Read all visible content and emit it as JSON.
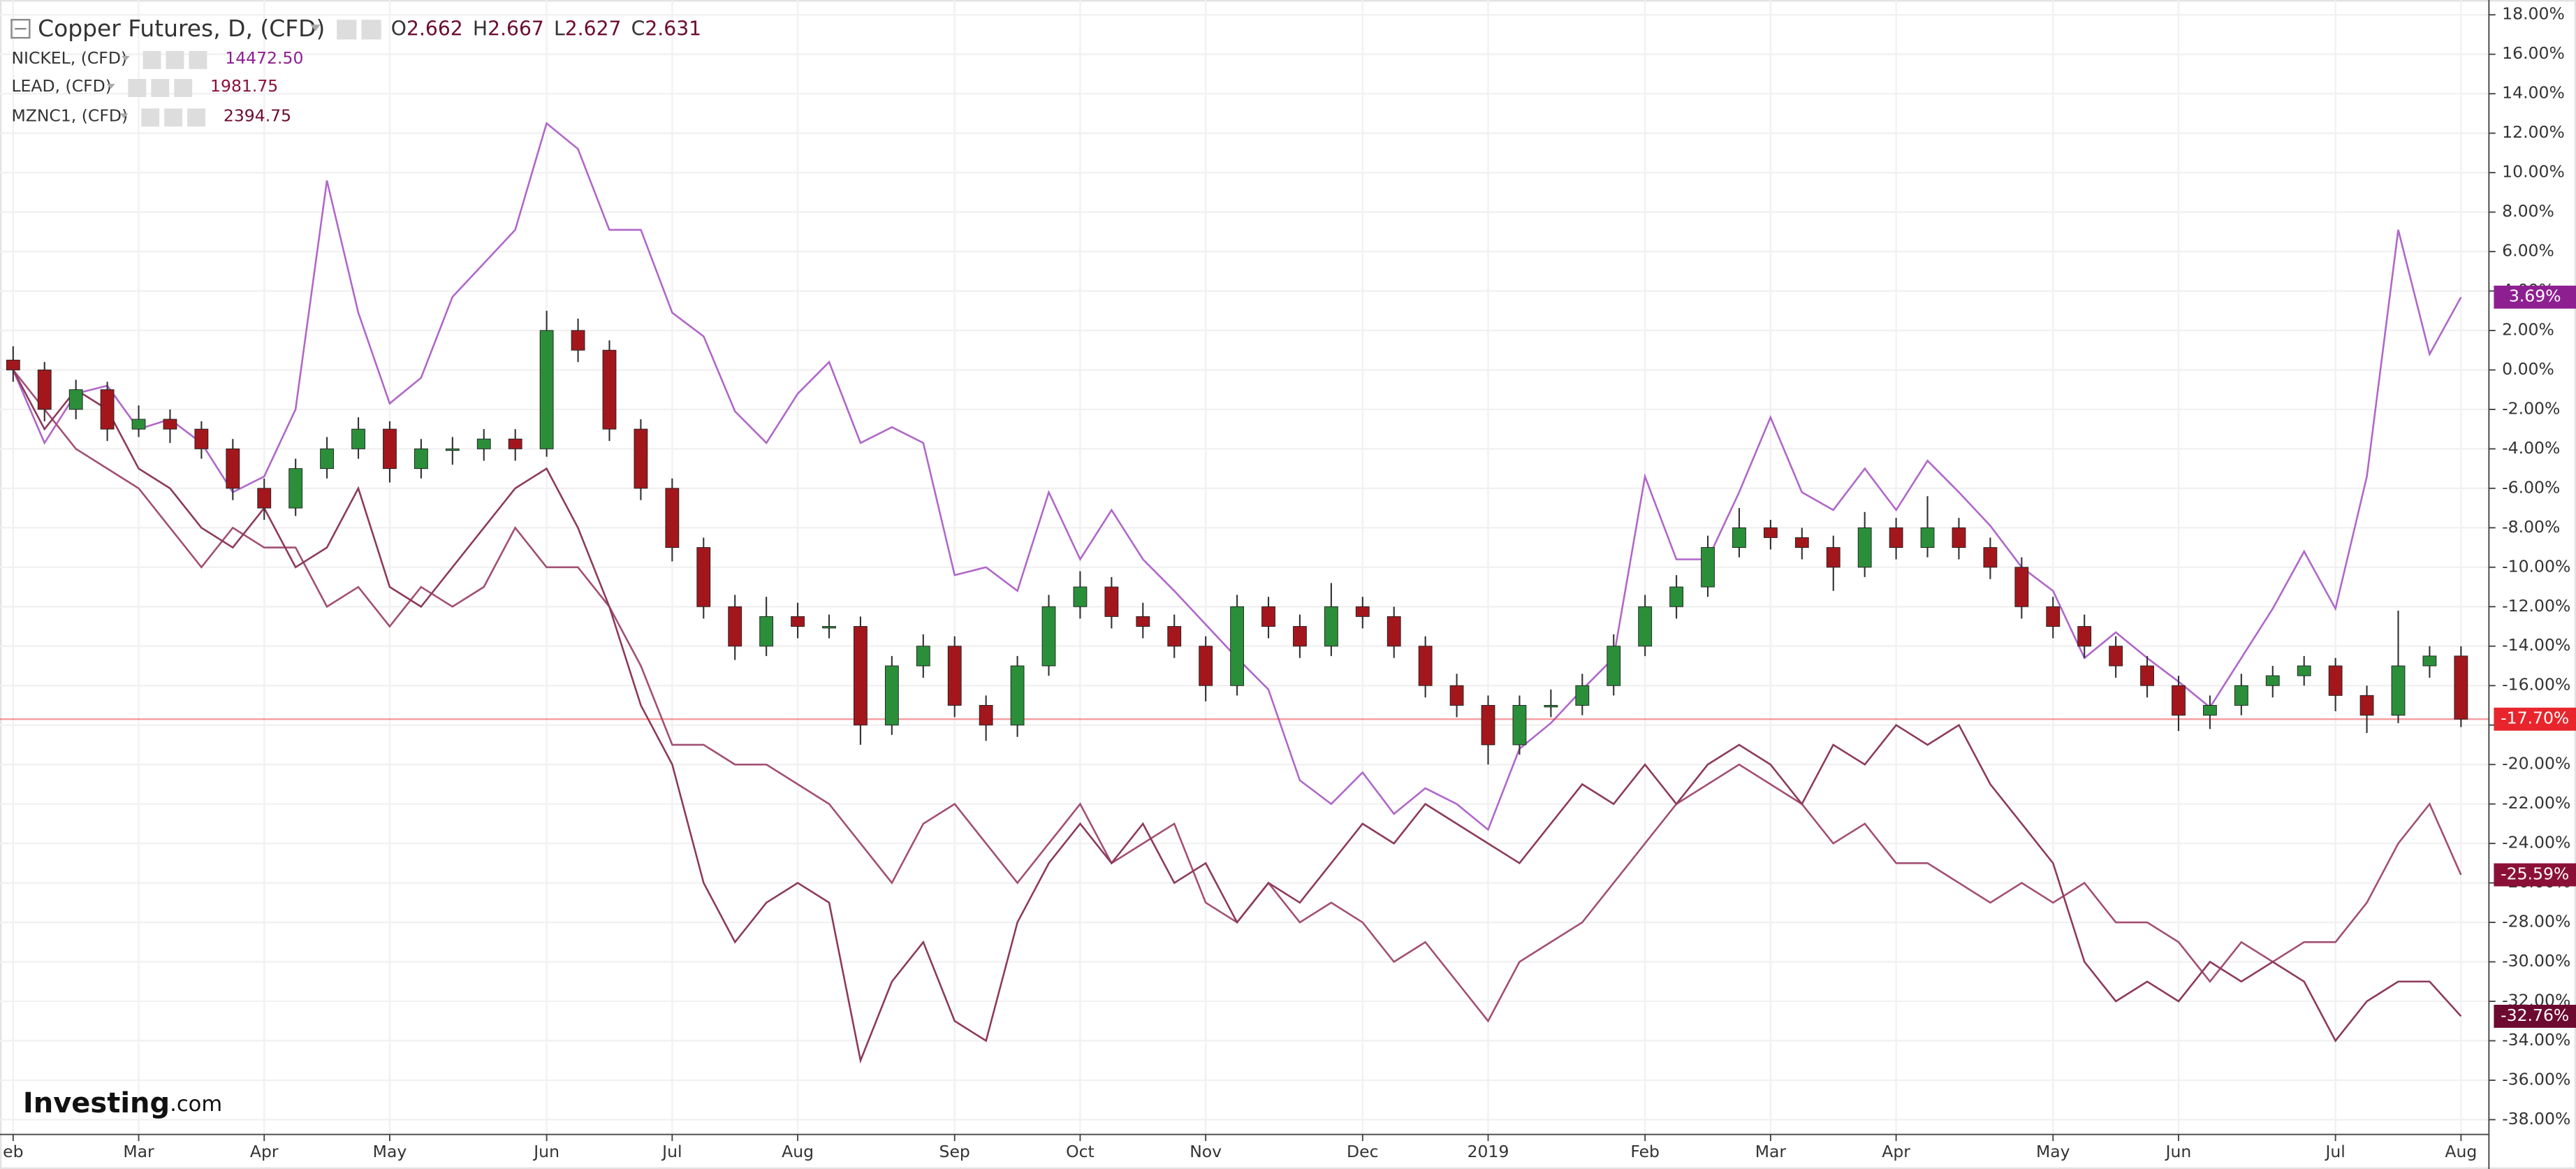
{
  "chart_data": {
    "type": "candlestick",
    "title": "Copper Futures, D, (CFD)",
    "header": [
      {
        "label": "O",
        "value": 2.662
      },
      {
        "label": "H",
        "value": 2.667
      },
      {
        "label": "L",
        "value": 2.627
      },
      {
        "label": "C",
        "value": 2.631
      }
    ],
    "up_color": "#2b8f3a",
    "down_color": "#a3171c",
    "x": [
      "eb",
      null,
      null,
      null,
      "Mar",
      null,
      null,
      null,
      "Apr",
      null,
      null,
      null,
      "May",
      null,
      null,
      null,
      null,
      "Jun",
      null,
      null,
      null,
      "Jul",
      null,
      null,
      null,
      "Aug",
      null,
      null,
      null,
      null,
      "Sep",
      null,
      null,
      null,
      "Oct",
      null,
      null,
      null,
      "Nov",
      null,
      null,
      null,
      null,
      "Dec",
      null,
      null,
      null,
      "2019",
      null,
      null,
      null,
      null,
      "Feb",
      null,
      null,
      null,
      "Mar",
      null,
      null,
      null,
      "Apr",
      null,
      null,
      null,
      null,
      "May",
      null,
      null,
      null,
      "Jun",
      null,
      null,
      null,
      null,
      "Jul",
      null,
      null,
      null,
      "Aug"
    ],
    "ohlc": [
      [
        0.5,
        1.2,
        -0.6,
        0
      ],
      [
        0,
        0.4,
        -2.6,
        -2
      ],
      [
        -2,
        -0.5,
        -2.5,
        -1
      ],
      [
        -1,
        -0.6,
        -3.6,
        -3
      ],
      [
        -3,
        -1.8,
        -3.4,
        -2.5
      ],
      [
        -2.5,
        -2,
        -3.7,
        -3
      ],
      [
        -3,
        -2.6,
        -4.5,
        -4
      ],
      [
        -4,
        -3.5,
        -6.6,
        -6
      ],
      [
        -6,
        -5.5,
        -7.6,
        -7
      ],
      [
        -7,
        -4.5,
        -7.4,
        -5
      ],
      [
        -5,
        -3.4,
        -5.5,
        -4
      ],
      [
        -4,
        -2.4,
        -4.5,
        -3
      ],
      [
        -3,
        -2.6,
        -5.7,
        -5
      ],
      [
        -5,
        -3.5,
        -5.5,
        -4
      ],
      [
        -4,
        -3.4,
        -4.8,
        -4
      ],
      [
        -4,
        -3,
        -4.6,
        -3.5
      ],
      [
        -3.5,
        -3,
        -4.6,
        -4
      ],
      [
        -4,
        3,
        -4.4,
        2
      ],
      [
        2,
        2.6,
        0.4,
        1
      ],
      [
        1,
        1.5,
        -3.6,
        -3
      ],
      [
        -3,
        -2.5,
        -6.6,
        -6
      ],
      [
        -6,
        -5.5,
        -9.7,
        -9
      ],
      [
        -9,
        -8.5,
        -12.6,
        -12
      ],
      [
        -12,
        -11.4,
        -14.7,
        -14
      ],
      [
        -14,
        -11.5,
        -14.5,
        -12.5
      ],
      [
        -12.5,
        -11.8,
        -13.6,
        -13
      ],
      [
        -13,
        -12.4,
        -13.6,
        -13
      ],
      [
        -13,
        -12.5,
        -19,
        -18
      ],
      [
        -18,
        -14.5,
        -18.5,
        -15
      ],
      [
        -15,
        -13.4,
        -15.6,
        -14
      ],
      [
        -14,
        -13.5,
        -17.6,
        -17
      ],
      [
        -17,
        -16.5,
        -18.8,
        -18
      ],
      [
        -18,
        -14.5,
        -18.6,
        -15
      ],
      [
        -15,
        -11.4,
        -15.5,
        -12
      ],
      [
        -12,
        -10.2,
        -12.6,
        -11
      ],
      [
        -11,
        -10.5,
        -13.1,
        -12.5
      ],
      [
        -12.5,
        -11.8,
        -13.6,
        -13
      ],
      [
        -13,
        -12.4,
        -14.6,
        -14
      ],
      [
        -14,
        -13.5,
        -16.8,
        -16
      ],
      [
        -16,
        -11.4,
        -16.5,
        -12
      ],
      [
        -12,
        -11.5,
        -13.6,
        -13
      ],
      [
        -13,
        -12.4,
        -14.6,
        -14
      ],
      [
        -14,
        -10.8,
        -14.5,
        -12
      ],
      [
        -12,
        -11.5,
        -13.1,
        -12.5
      ],
      [
        -12.5,
        -12,
        -14.6,
        -14
      ],
      [
        -14,
        -13.5,
        -16.6,
        -16
      ],
      [
        -16,
        -15.4,
        -17.6,
        -17
      ],
      [
        -17,
        -16.5,
        -20,
        -19
      ],
      [
        -19,
        -16.5,
        -19.5,
        -17
      ],
      [
        -17,
        -16.2,
        -17.6,
        -17
      ],
      [
        -17,
        -15.4,
        -17.5,
        -16
      ],
      [
        -16,
        -13.4,
        -16.5,
        -14
      ],
      [
        -14,
        -11.4,
        -14.5,
        -12
      ],
      [
        -12,
        -10.4,
        -12.6,
        -11
      ],
      [
        -11,
        -8.4,
        -11.5,
        -9
      ],
      [
        -9,
        -7,
        -9.5,
        -8
      ],
      [
        -8,
        -7.6,
        -9.1,
        -8.5
      ],
      [
        -8.5,
        -8,
        -9.6,
        -9
      ],
      [
        -9,
        -8.4,
        -11.2,
        -10
      ],
      [
        -10,
        -7.2,
        -10.5,
        -8
      ],
      [
        -8,
        -7.5,
        -9.6,
        -9
      ],
      [
        -9,
        -6.4,
        -9.5,
        -8
      ],
      [
        -8,
        -7.5,
        -9.6,
        -9
      ],
      [
        -9,
        -8.5,
        -10.6,
        -10
      ],
      [
        -10,
        -9.5,
        -12.6,
        -12
      ],
      [
        -12,
        -11.5,
        -13.6,
        -13
      ],
      [
        -13,
        -12.4,
        -14.6,
        -14
      ],
      [
        -14,
        -13.5,
        -15.6,
        -15
      ],
      [
        -15,
        -14.5,
        -16.6,
        -16
      ],
      [
        -16,
        -15.5,
        -18.3,
        -17.5
      ],
      [
        -17.5,
        -16.5,
        -18.2,
        -17
      ],
      [
        -17,
        -15.4,
        -17.5,
        -16
      ],
      [
        -16,
        -15,
        -16.6,
        -15.5
      ],
      [
        -15.5,
        -14.5,
        -16,
        -15
      ],
      [
        -15,
        -14.6,
        -17.3,
        -16.5
      ],
      [
        -16.5,
        -16,
        -18.4,
        -17.5
      ],
      [
        -17.5,
        -12.2,
        -17.9,
        -15
      ],
      [
        -15,
        -14,
        -15.6,
        -14.5
      ],
      [
        -14.5,
        -14,
        -18.1,
        -17.7
      ]
    ],
    "last_label": "-17.70%",
    "last_color": "#e8252c",
    "series": [
      {
        "name": "NICKEL, (CFD)",
        "color": "#b067c9",
        "label_color": "#8e1f91",
        "last": {
          "value": 14472.5,
          "label": "14472.50"
        },
        "end_label": "3.69%",
        "values": [
          0,
          -3.7,
          -1.2,
          -0.8,
          -3,
          -2.5,
          -3.7,
          -6.2,
          -5.4,
          -2,
          9.6,
          2.9,
          -1.7,
          -0.4,
          3.7,
          5.4,
          7.1,
          12.5,
          11.2,
          7.1,
          7.1,
          2.9,
          1.7,
          -2.1,
          -3.7,
          -1.2,
          0.4,
          -3.7,
          -2.9,
          -3.7,
          -10.4,
          -10,
          -11.2,
          -6.2,
          -9.6,
          -7.1,
          -9.6,
          -11.2,
          -12.9,
          -14.6,
          -16.2,
          -20.8,
          -22,
          -20.4,
          -22.5,
          -21.2,
          -22,
          -23.3,
          -19.2,
          -17.9,
          -16.2,
          -14.6,
          -5.4,
          -9.6,
          -9.6,
          -6.2,
          -2.4,
          -6.2,
          -7.1,
          -5,
          -7.1,
          -4.6,
          -6.2,
          -7.9,
          -10,
          -11.2,
          -14.6,
          -13.3,
          -14.6,
          -15.8,
          -17.1,
          -14.6,
          -12.1,
          -9.2,
          -12.1,
          -5.4,
          7.1,
          0.8,
          3.69
        ]
      },
      {
        "name": "LEAD, (CFD)",
        "color": "#a24f73",
        "label_color": "#8b1038",
        "last": 1981.75,
        "end_label": "-25.59%",
        "values": [
          0,
          -2,
          -4,
          -5,
          -6,
          -8,
          -10,
          -8,
          -9,
          -9,
          -12,
          -11,
          -13,
          -11,
          -12,
          -11,
          -8,
          -10,
          -10,
          -12,
          -15,
          -19,
          -19,
          -20,
          -20,
          -21,
          -22,
          -24,
          -26,
          -23,
          -22,
          -24,
          -26,
          -24,
          -22,
          -25,
          -24,
          -23,
          -27,
          -28,
          -26,
          -28,
          -27,
          -28,
          -30,
          -29,
          -31,
          -33,
          -30,
          -29,
          -28,
          -26,
          -24,
          -22,
          -21,
          -20,
          -21,
          -22,
          -24,
          -23,
          -25,
          -25,
          -26,
          -27,
          -26,
          -27,
          -26,
          -28,
          -28,
          -29,
          -31,
          -29,
          -30,
          -29,
          -29,
          -27,
          -24,
          -22,
          -25.59
        ]
      },
      {
        "name": "MZNC1, (CFD)",
        "color": "#8c3a5c",
        "label_color": "#6d0a30",
        "last": 2394.75,
        "end_label": "-32.76%",
        "values": [
          0,
          -3,
          -1,
          -2,
          -5,
          -6,
          -8,
          -9,
          -7,
          -10,
          -9,
          -6,
          -11,
          -12,
          -10,
          -8,
          -6,
          -5,
          -8,
          -12,
          -17,
          -20,
          -26,
          -29,
          -27,
          -26,
          -27,
          -35,
          -31,
          -29,
          -33,
          -34,
          -28,
          -25,
          -23,
          -25,
          -23,
          -26,
          -25,
          -28,
          -26,
          -27,
          -25,
          -23,
          -24,
          -22,
          -23,
          -24,
          -25,
          -23,
          -21,
          -22,
          -20,
          -22,
          -20,
          -19,
          -20,
          -22,
          -19,
          -20,
          -18,
          -19,
          -18,
          -21,
          -23,
          -25,
          -30,
          -32,
          -31,
          -32,
          -30,
          -31,
          -30,
          -31,
          -34,
          -32,
          -31,
          -31,
          -32.76
        ]
      }
    ],
    "ylim": [
      -38.75,
      18.75
    ],
    "yticks": [
      {
        "value": 18,
        "label": "18.00%"
      },
      {
        "value": 16,
        "label": "16.00%"
      },
      {
        "value": 14,
        "label": "14.00%"
      },
      {
        "value": 12,
        "label": "12.00%"
      },
      {
        "value": 10,
        "label": "10.00%"
      },
      {
        "value": 8,
        "label": "8.00%"
      },
      {
        "value": 6,
        "label": "6.00%"
      },
      {
        "value": 4,
        "label": "4.00%"
      },
      {
        "value": 2,
        "label": "2.00%"
      },
      {
        "value": 0,
        "label": "0.00%"
      },
      {
        "value": -2,
        "label": "-2.00%"
      },
      {
        "value": -4,
        "label": "-4.00%"
      },
      {
        "value": -6,
        "label": "-6.00%"
      },
      {
        "value": -8,
        "label": "-8.00%"
      },
      {
        "value": -10,
        "label": "-10.00%"
      },
      {
        "value": -12,
        "label": "-12.00%"
      },
      {
        "value": -14,
        "label": "-14.00%"
      },
      {
        "value": -16,
        "label": "-16.00%"
      },
      {
        "value": -18,
        "label": "-18.00%"
      },
      {
        "value": -20,
        "label": "-20.00%"
      },
      {
        "value": -22,
        "label": "-22.00%"
      },
      {
        "value": -24,
        "label": "-24.00%"
      },
      {
        "value": -26,
        "label": "-26.00%"
      },
      {
        "value": -28,
        "label": "-28.00%"
      },
      {
        "value": -30,
        "label": "-30.00%"
      },
      {
        "value": -32,
        "label": "-32.00%"
      },
      {
        "value": -34,
        "label": "-34.00%"
      },
      {
        "value": -36,
        "label": "-36.00%"
      },
      {
        "value": -38,
        "label": "-38.00%"
      }
    ],
    "grid": true
  },
  "brand": {
    "name": "Investing",
    "suffix": ".com"
  }
}
